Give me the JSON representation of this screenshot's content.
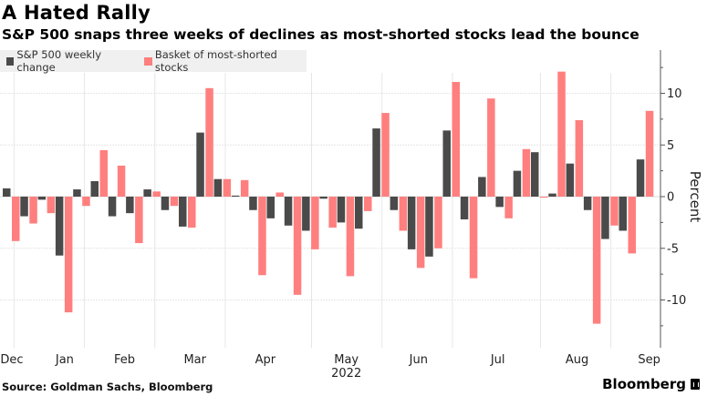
{
  "header": {
    "title": "A Hated Rally",
    "subtitle": "S&P 500 snaps three weeks of declines as most-shorted stocks lead the bounce"
  },
  "footer": {
    "source": "Source: Goldman Sachs, Bloomberg",
    "brand": "Bloomberg"
  },
  "colors": {
    "sp500": "#4a4a4a",
    "basket": "#ff7f7f",
    "legend_bg": "#f0f0f0",
    "grid": "#e6e6e6"
  },
  "chart_data": {
    "type": "bar",
    "title": "A Hated Rally",
    "subtitle": "S&P 500 snaps three weeks of declines as most-shorted stocks lead the bounce",
    "xlabel": "",
    "ylabel": "Percent",
    "ylim": [
      -14,
      14
    ],
    "yticks": [
      10,
      5,
      0,
      -5,
      -10
    ],
    "ytick_labels": [
      "10",
      "5",
      "0",
      "-5",
      "-10"
    ],
    "grid": true,
    "legend_position": "top-left",
    "month_labels": [
      {
        "label": "Dec",
        "week_index": 0
      },
      {
        "label": "Jan",
        "week_index": 3
      },
      {
        "label": "Feb",
        "week_index": 6.4
      },
      {
        "label": "Mar",
        "week_index": 10.4
      },
      {
        "label": "Apr",
        "week_index": 14.4
      },
      {
        "label": "May",
        "week_index": 19.0
      },
      {
        "label": "Jun",
        "week_index": 23.1
      },
      {
        "label": "Jul",
        "week_index": 27.6
      },
      {
        "label": "Aug",
        "week_index": 32.1
      },
      {
        "label": "Sep",
        "week_index": 36.2
      }
    ],
    "year_label": {
      "label": "2022",
      "week_index": 19.0
    },
    "month_gridlines_week_index": [
      0.2,
      4.2,
      8.2,
      12.2,
      17.1,
      21.1,
      25.1,
      30.1,
      34.1
    ],
    "series": [
      {
        "name": "S&P 500 weekly change",
        "color": "#4a4a4a",
        "values": [
          0.8,
          -1.9,
          -0.3,
          -5.7,
          0.7,
          1.5,
          -1.9,
          -1.6,
          0.7,
          -1.3,
          -2.9,
          6.2,
          1.7,
          0.1,
          -1.3,
          -2.1,
          -2.8,
          -3.3,
          -0.2,
          -2.5,
          -3.1,
          6.6,
          -1.3,
          -5.1,
          -5.8,
          6.4,
          -2.2,
          1.9,
          -1.0,
          2.5,
          4.3,
          0.3,
          3.2,
          -1.3,
          -4.1,
          -3.3,
          3.6
        ]
      },
      {
        "name": "Basket of most-shorted stocks",
        "color": "#ff7f7f",
        "values": [
          -4.3,
          -2.6,
          -1.6,
          -11.2,
          -0.9,
          4.5,
          3.0,
          -4.5,
          0.5,
          -0.9,
          -3.0,
          10.5,
          1.7,
          1.6,
          -7.6,
          0.4,
          -9.5,
          -5.1,
          -3.0,
          -7.7,
          -1.4,
          8.1,
          -3.3,
          -6.9,
          -5.0,
          11.1,
          -7.9,
          9.5,
          -2.1,
          4.6,
          -0.1,
          12.1,
          7.4,
          -12.3,
          -2.8,
          -5.5,
          8.3
        ]
      }
    ]
  }
}
